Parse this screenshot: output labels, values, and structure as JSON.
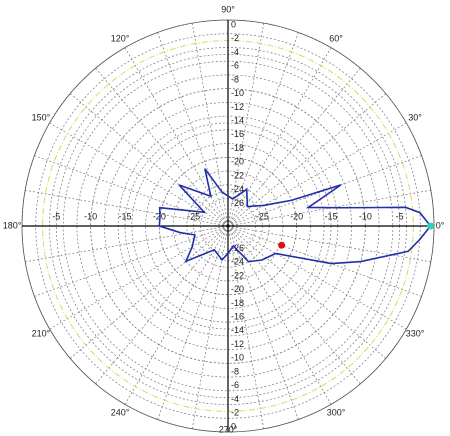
{
  "chart_data": {
    "type": "polar",
    "rlim": [
      -30,
      0
    ],
    "rticks_vertical": [
      0,
      -2,
      -4,
      -6,
      -8,
      -10,
      -12,
      -14,
      -16,
      -18,
      -20,
      -22,
      -24,
      -26
    ],
    "rticks_horizontal": [
      -5,
      -10,
      -15,
      -20,
      -25
    ],
    "theta_grid_step": 10,
    "reference_level": -3,
    "reference_color": "#d8d860",
    "theta_ticks": [
      {
        "value": 0,
        "label": "0°"
      },
      {
        "value": 30,
        "label": "30°"
      },
      {
        "value": 60,
        "label": "60°"
      },
      {
        "value": 90,
        "label": "90°"
      },
      {
        "value": 120,
        "label": "120°"
      },
      {
        "value": 150,
        "label": "150°"
      },
      {
        "value": 180,
        "label": "180°"
      },
      {
        "value": 210,
        "label": "210°"
      },
      {
        "value": 240,
        "label": "240°"
      },
      {
        "value": 270,
        "label": "270°"
      },
      {
        "value": 300,
        "label": "300°"
      },
      {
        "value": 330,
        "label": "330°"
      }
    ],
    "series": [
      {
        "color": "#1f2fa8",
        "angles": [
          0,
          4,
          6,
          9,
          13,
          20,
          22,
          30,
          45,
          63,
          80,
          100,
          112,
          120,
          140,
          150,
          165,
          172,
          180,
          188,
          195,
          210,
          220,
          240,
          260,
          270,
          285,
          300,
          315,
          330,
          340,
          345,
          352,
          356,
          360
        ],
        "values": [
          -0.5,
          -2,
          -4,
          -13,
          -18,
          -12.5,
          -20,
          -24,
          -26,
          -24,
          -26,
          -25,
          -21,
          -25,
          -20.7,
          -26,
          -19.7,
          -20,
          -20,
          -23,
          -25,
          -24,
          -22,
          -26,
          -25,
          -26,
          -27,
          -24,
          -23,
          -22,
          -14,
          -10,
          -3.5,
          -2,
          -0.5
        ]
      }
    ],
    "markers": [
      {
        "angle": 340.3,
        "value": -21.7,
        "color": "#e01010"
      },
      {
        "angle": 0,
        "value": -0.5,
        "color": "#30d0c0"
      }
    ]
  }
}
